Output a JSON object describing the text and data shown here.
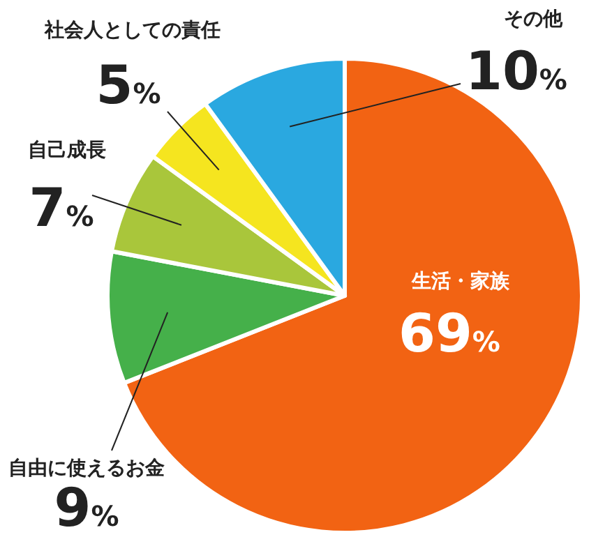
{
  "chart_data": {
    "type": "pie",
    "categories": [
      "生活・家族",
      "自由に使えるお金",
      "自己成長",
      "社会人としての責任",
      "その他"
    ],
    "values": [
      69,
      9,
      7,
      5,
      10
    ],
    "colors": [
      "#f26313",
      "#45b04a",
      "#a9c63b",
      "#f5e51f",
      "#2aa8e0"
    ],
    "value_labels": [
      "69%",
      "9%",
      "7%",
      "5%",
      "10%"
    ]
  }
}
